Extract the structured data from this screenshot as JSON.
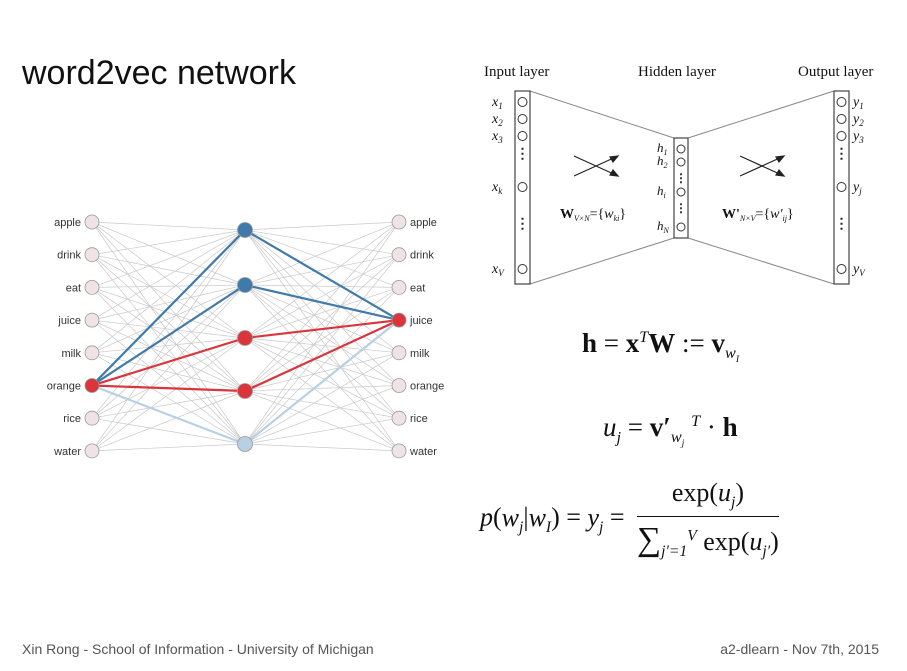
{
  "slide": {
    "title": "word2vec network",
    "footer_left": "Xin Rong - School of Information - University of Michigan",
    "footer_right": "a2-dlearn - Nov 7th, 2015"
  },
  "network": {
    "input_words": [
      "apple",
      "drink",
      "eat",
      "juice",
      "milk",
      "orange",
      "rice",
      "water"
    ],
    "output_words": [
      "apple",
      "drink",
      "eat",
      "juice",
      "milk",
      "orange",
      "rice",
      "water"
    ],
    "active_input": "orange",
    "active_output": "juice",
    "colors": {
      "node_neutral": "#efe3e6",
      "active": "#d9353b",
      "hidden_blue": "#3f7aaa",
      "hidden_light": "#b8d0e3",
      "edge_gray": "#c9c9c9"
    }
  },
  "diagram": {
    "input_label": "Input layer",
    "hidden_label": "Hidden layer",
    "output_label": "Output layer",
    "input_units": [
      "x1",
      "x2",
      "x3",
      "xk",
      "xV"
    ],
    "hidden_units": [
      "h1",
      "h2",
      "hi",
      "hN"
    ],
    "output_units": [
      "y1",
      "y2",
      "y3",
      "yj",
      "yV"
    ],
    "weight_in": "W_{V×N}={w_ki}",
    "weight_out": "W'_{N×V}={w'_ij}"
  },
  "equations": {
    "eq1": "h = x^T W := v_{w_I}",
    "eq2": "u_j = v'_{w_j}^T · h",
    "eq3": "p(w_j|w_I) = y_j = exp(u_j) / Σ_{j'=1}^{V} exp(u_j')"
  }
}
